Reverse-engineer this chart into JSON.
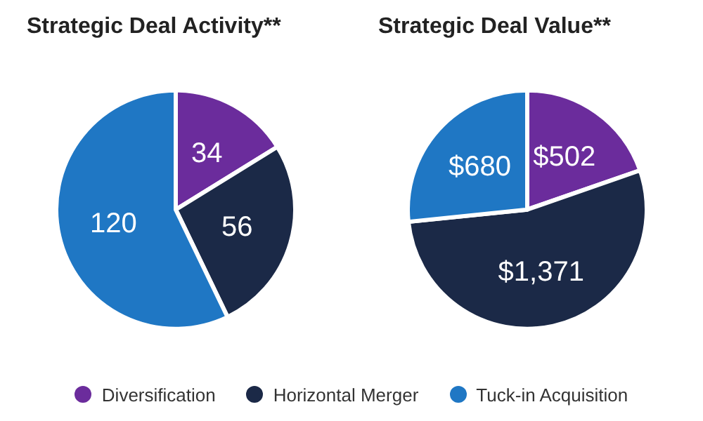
{
  "chart_data": [
    {
      "type": "pie",
      "title": "Strategic Deal Activity**",
      "categories": [
        "Diversification",
        "Horizontal Merger",
        "Tuck-in Acquisition"
      ],
      "values": [
        34,
        56,
        120
      ],
      "colors": [
        "#6b2c9c",
        "#1b2947",
        "#1f77c4"
      ],
      "data_labels": true,
      "legend": "bottom"
    },
    {
      "type": "pie",
      "title": "Strategic Deal Value**",
      "categories": [
        null,
        null,
        null
      ],
      "values": [
        502,
        1371,
        680
      ],
      "colors": [
        "#6b2c9c",
        "#1b2947",
        "#1f77c4"
      ],
      "value_labels": [
        "$502",
        "$1,371",
        "$680"
      ]
    }
  ]
}
